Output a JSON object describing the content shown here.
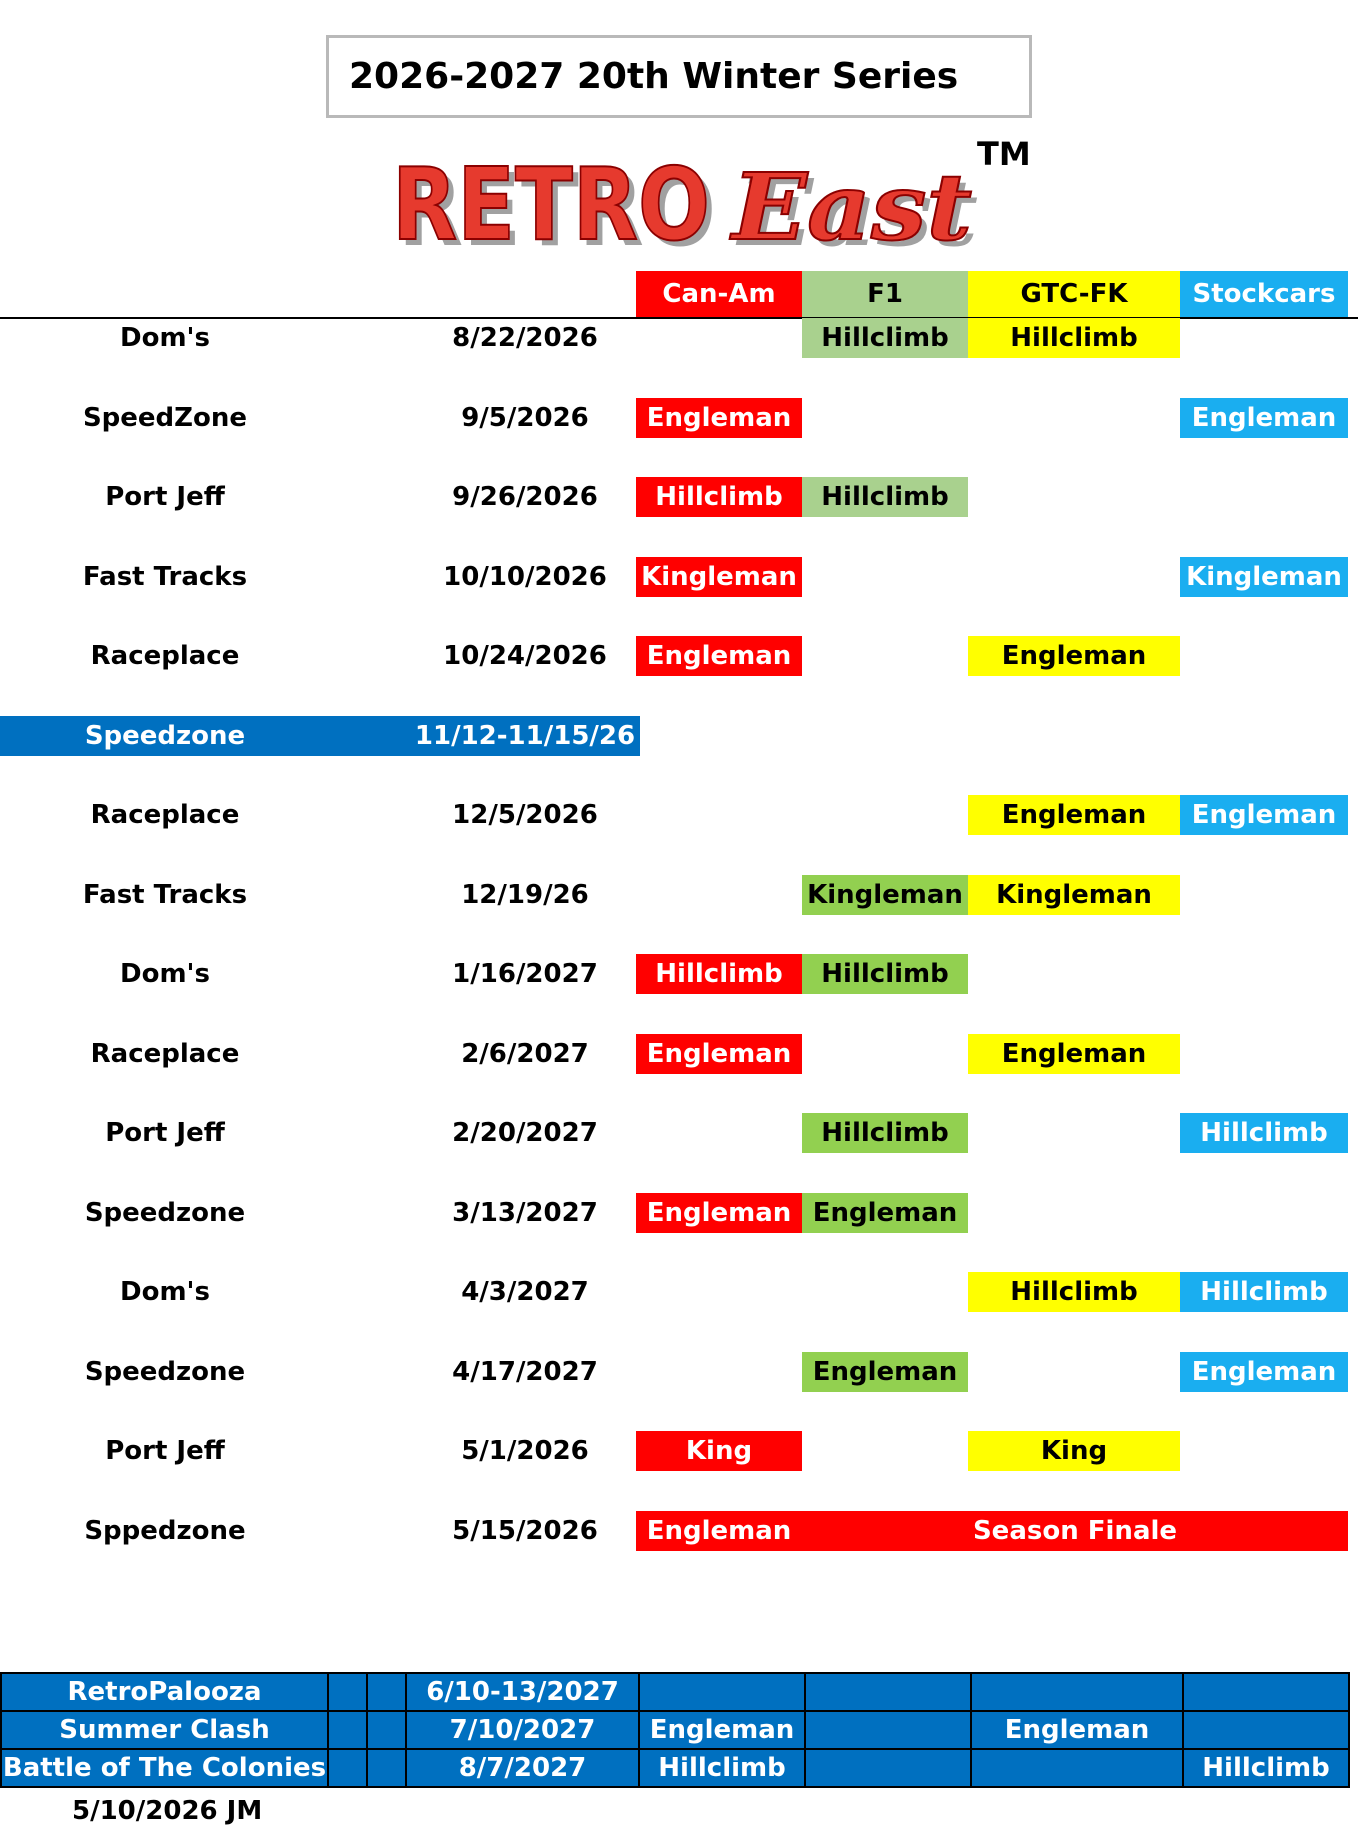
{
  "title": "2026-2027  20th Winter Series",
  "logo": {
    "word1": "RETRO",
    "word2": "East",
    "tm": "TM"
  },
  "columns": [
    "Can-Am",
    "F1",
    "GTC-FK",
    "Stockcars"
  ],
  "colors": {
    "canam": "#ff0000",
    "f1_light": "#a9d18e",
    "f1_dark": "#92d050",
    "gtc": "#ffff00",
    "stockcars": "#1aaef0",
    "band": "#0070c0"
  },
  "rows": [
    {
      "venue": "Dom's",
      "date": "8/22/2026",
      "f1": "Hillclimb",
      "gtc": "Hillclimb"
    },
    {
      "venue": "SpeedZone",
      "date": "9/5/2026",
      "canam": "Engleman",
      "stk": "Engleman"
    },
    {
      "venue": "Port Jeff",
      "date": "9/26/2026",
      "canam": "Hillclimb",
      "f1": "Hillclimb"
    },
    {
      "venue": "Fast Tracks",
      "date": "10/10/2026",
      "canam": "Kingleman",
      "stk": "Kingleman"
    },
    {
      "venue": "Raceplace",
      "date": "10/24/2026",
      "canam": "Engleman",
      "gtc": "Engleman"
    },
    {
      "venue": "Speedzone",
      "date": "11/12-11/15/26"
    },
    {
      "venue": "Raceplace",
      "date": "12/5/2026",
      "gtc": "Engleman",
      "stk": "Engleman"
    },
    {
      "venue": "Fast Tracks",
      "date": "12/19/26",
      "f1": "Kingleman",
      "gtc": "Kingleman"
    },
    {
      "venue": "Dom's",
      "date": "1/16/2027",
      "canam": "Hillclimb",
      "f1": "Hillclimb"
    },
    {
      "venue": "Raceplace",
      "date": "2/6/2027",
      "canam": "Engleman",
      "gtc": "Engleman"
    },
    {
      "venue": "Port Jeff",
      "date": "2/20/2027",
      "f1": "Hillclimb",
      "stk": "Hillclimb"
    },
    {
      "venue": "Speedzone",
      "date": "3/13/2027",
      "canam": "Engleman",
      "f1": "Engleman"
    },
    {
      "venue": "Dom's",
      "date": "4/3/2027",
      "gtc": "Hillclimb",
      "stk": "Hillclimb"
    },
    {
      "venue": "Speedzone",
      "date": "4/17/2027",
      "f1": "Engleman",
      "stk": "Engleman"
    },
    {
      "venue": "Port Jeff",
      "date": "5/1/2026",
      "canam": "King",
      "gtc": "King"
    },
    {
      "venue": "Sppedzone",
      "date": "5/15/2026",
      "canam": "Engleman",
      "finale": "Season Finale"
    }
  ],
  "bottom": [
    {
      "venue": "RetroPalooza",
      "date": "6/10-13/2027",
      "canam": "",
      "f1": "",
      "gtc": "",
      "stk": ""
    },
    {
      "venue": "Summer Clash",
      "date": "7/10/2027",
      "canam": "Engleman",
      "f1": "",
      "gtc": "Engleman",
      "stk": ""
    },
    {
      "venue": "Battle of The Colonies",
      "date": "8/7/2027",
      "canam": "Hillclimb",
      "f1": "",
      "gtc": "",
      "stk": "Hillclimb"
    }
  ],
  "footnote": "5/10/2026 JM"
}
